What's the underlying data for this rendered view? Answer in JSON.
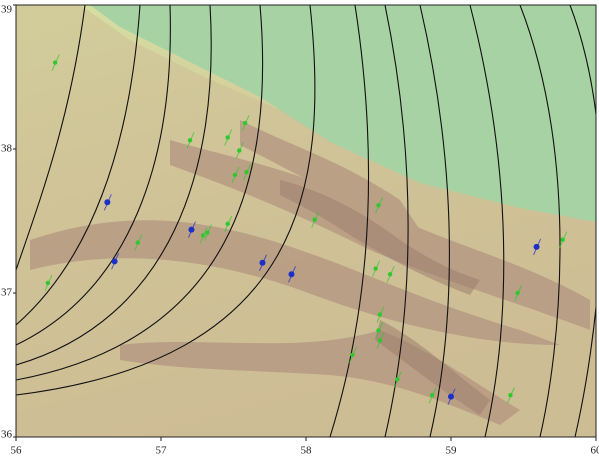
{
  "chart_data": {
    "type": "scatter",
    "xlim": [
      56,
      60
    ],
    "ylim": [
      36,
      39
    ],
    "xticks": [
      56,
      57,
      58,
      59,
      60
    ],
    "yticks": [
      36,
      37,
      38,
      39
    ],
    "series": [
      {
        "color": "#1c2fc8",
        "x": [
          56.63,
          56.68,
          57.21,
          57.7,
          57.9,
          59.0,
          59.59
        ],
        "y": [
          37.63,
          37.22,
          37.44,
          37.21,
          37.13,
          36.28,
          37.32
        ]
      },
      {
        "color": "#2fc82f",
        "x": [
          56.27,
          57.2,
          57.46,
          57.58,
          57.54,
          57.51,
          57.59,
          57.32,
          57.29,
          57.46,
          56.84,
          56.22,
          58.06,
          58.5,
          58.48,
          58.58,
          58.51,
          58.5,
          58.51,
          58.32,
          58.63,
          58.87,
          59.41,
          59.46,
          59.77
        ],
        "y": [
          38.6,
          38.06,
          38.08,
          38.18,
          37.99,
          37.82,
          37.84,
          37.42,
          37.4,
          37.48,
          37.35,
          37.07,
          37.51,
          37.61,
          37.17,
          37.13,
          36.85,
          36.74,
          36.67,
          36.57,
          36.4,
          36.29,
          36.29,
          37.0,
          37.37
        ]
      }
    ]
  }
}
